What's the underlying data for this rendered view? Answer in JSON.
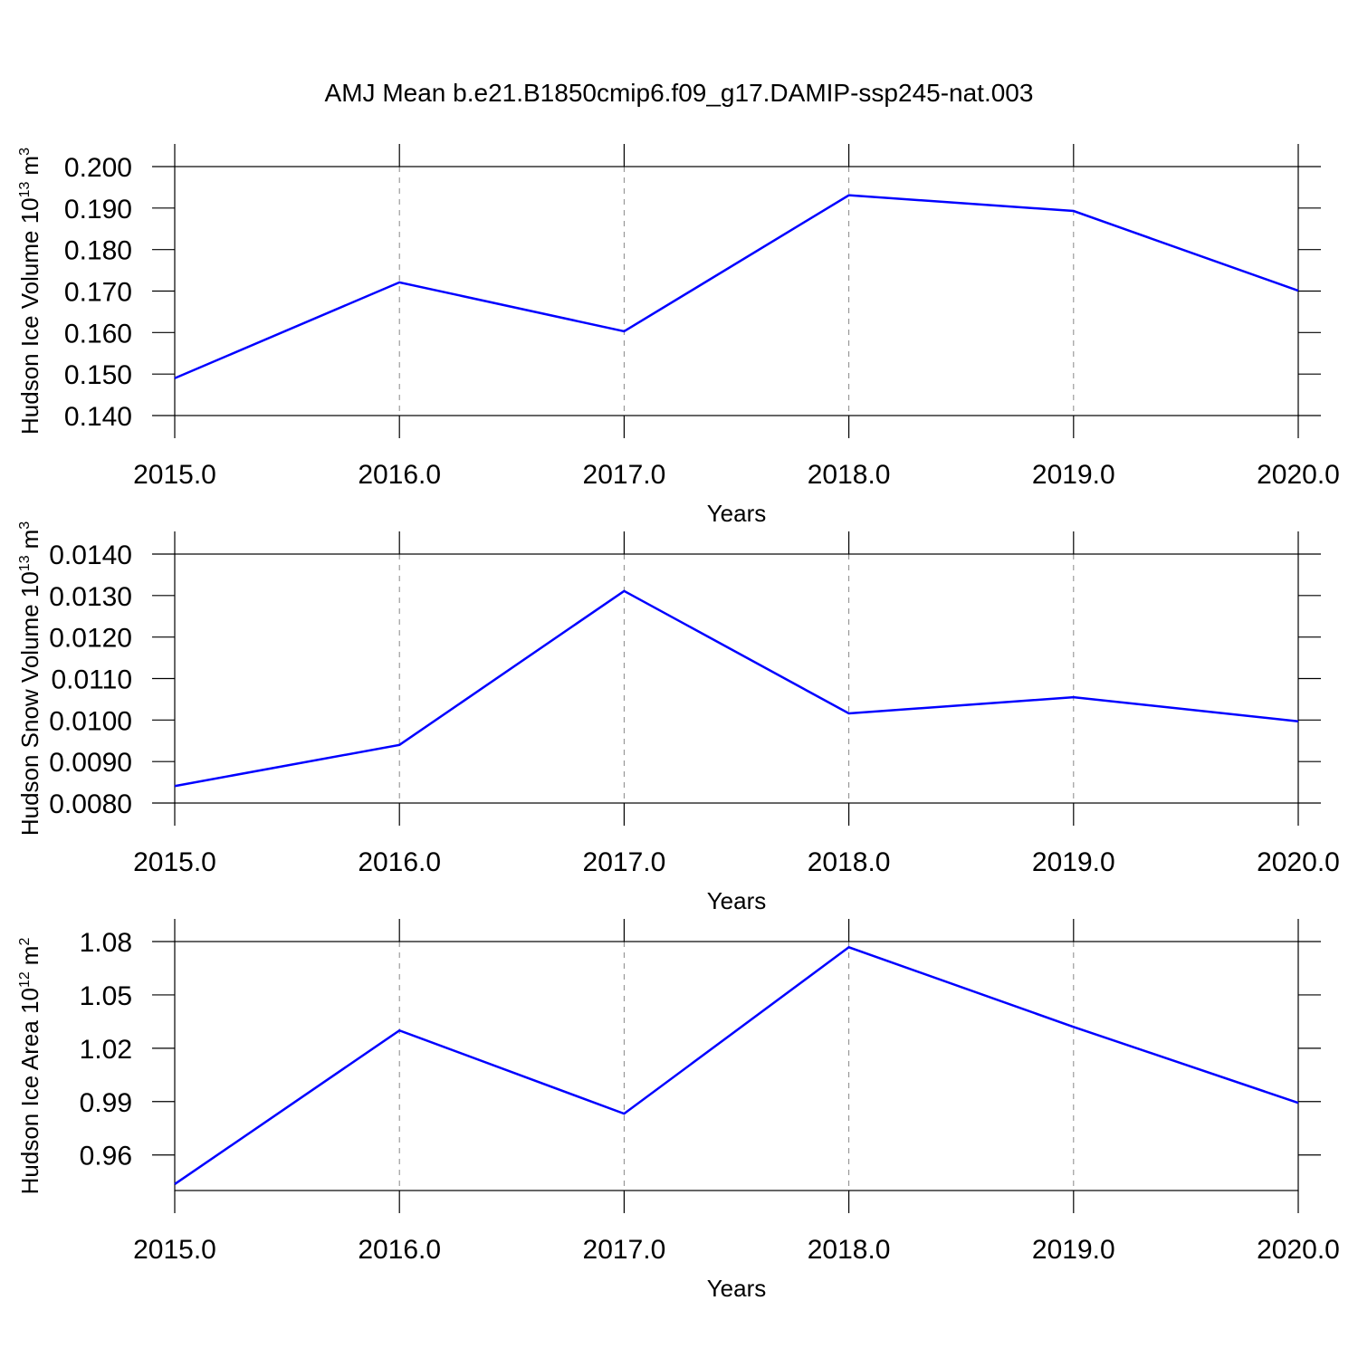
{
  "title": "AMJ Mean b.e21.B1850cmip6.f09_g17.DAMIP-ssp245-nat.003",
  "chart_data": [
    {
      "type": "line",
      "xlabel": "Years",
      "ylabel": {
        "text": "Hudson Ice Volume 10",
        "exp": "13",
        "unit": "m",
        "unit_exp": "3"
      },
      "x": [
        2015,
        2016,
        2017,
        2018,
        2019,
        2020
      ],
      "series": [
        {
          "color": "#0000ff",
          "values": [
            0.149,
            0.1721,
            0.1603,
            0.1931,
            0.1893,
            0.1701
          ]
        }
      ],
      "xlim": [
        2015,
        2020
      ],
      "xticks": [
        {
          "value": 2015,
          "label": "2015.0"
        },
        {
          "value": 2016,
          "label": "2016.0"
        },
        {
          "value": 2017,
          "label": "2017.0"
        },
        {
          "value": 2018,
          "label": "2018.0"
        },
        {
          "value": 2019,
          "label": "2019.0"
        },
        {
          "value": 2020,
          "label": "2020.0"
        }
      ],
      "ylim": [
        0.14,
        0.2
      ],
      "yticks": [
        {
          "value": 0.14,
          "label": "0.140"
        },
        {
          "value": 0.15,
          "label": "0.150"
        },
        {
          "value": 0.16,
          "label": "0.160"
        },
        {
          "value": 0.17,
          "label": "0.170"
        },
        {
          "value": 0.18,
          "label": "0.180"
        },
        {
          "value": 0.19,
          "label": "0.190"
        },
        {
          "value": 0.2,
          "label": "0.200"
        }
      ],
      "xgrid": true
    },
    {
      "type": "line",
      "xlabel": "Years",
      "ylabel": {
        "text": "Hudson Snow Volume 10",
        "exp": "13",
        "unit": "m",
        "unit_exp": "3"
      },
      "x": [
        2015,
        2016,
        2017,
        2018,
        2019,
        2020
      ],
      "series": [
        {
          "color": "#0000ff",
          "values": [
            0.00841,
            0.0094,
            0.01311,
            0.01016,
            0.01055,
            0.00997
          ]
        }
      ],
      "xlim": [
        2015,
        2020
      ],
      "xticks": [
        {
          "value": 2015,
          "label": "2015.0"
        },
        {
          "value": 2016,
          "label": "2016.0"
        },
        {
          "value": 2017,
          "label": "2017.0"
        },
        {
          "value": 2018,
          "label": "2018.0"
        },
        {
          "value": 2019,
          "label": "2019.0"
        },
        {
          "value": 2020,
          "label": "2020.0"
        }
      ],
      "ylim": [
        0.008,
        0.014
      ],
      "yticks": [
        {
          "value": 0.008,
          "label": "0.0080"
        },
        {
          "value": 0.009,
          "label": "0.0090"
        },
        {
          "value": 0.01,
          "label": "0.0100"
        },
        {
          "value": 0.011,
          "label": "0.0110"
        },
        {
          "value": 0.012,
          "label": "0.0120"
        },
        {
          "value": 0.013,
          "label": "0.0130"
        },
        {
          "value": 0.014,
          "label": "0.0140"
        }
      ],
      "xgrid": true
    },
    {
      "type": "line",
      "xlabel": "Years",
      "ylabel": {
        "text": "Hudson Ice Area 10",
        "exp": "12",
        "unit": "m",
        "unit_exp": "2"
      },
      "x": [
        2015,
        2016,
        2017,
        2018,
        2019,
        2020
      ],
      "series": [
        {
          "color": "#0000ff",
          "values": [
            0.9436,
            1.03,
            0.9832,
            1.0768,
            1.032,
            0.9893
          ]
        }
      ],
      "xlim": [
        2015,
        2020
      ],
      "xticks": [
        {
          "value": 2015,
          "label": "2015.0"
        },
        {
          "value": 2016,
          "label": "2016.0"
        },
        {
          "value": 2017,
          "label": "2017.0"
        },
        {
          "value": 2018,
          "label": "2018.0"
        },
        {
          "value": 2019,
          "label": "2019.0"
        },
        {
          "value": 2020,
          "label": "2020.0"
        }
      ],
      "ylim": [
        0.94,
        1.08
      ],
      "yticks": [
        0.96,
        0.99,
        1.02,
        1.05,
        1.08
      ],
      "xgrid": true
    }
  ]
}
